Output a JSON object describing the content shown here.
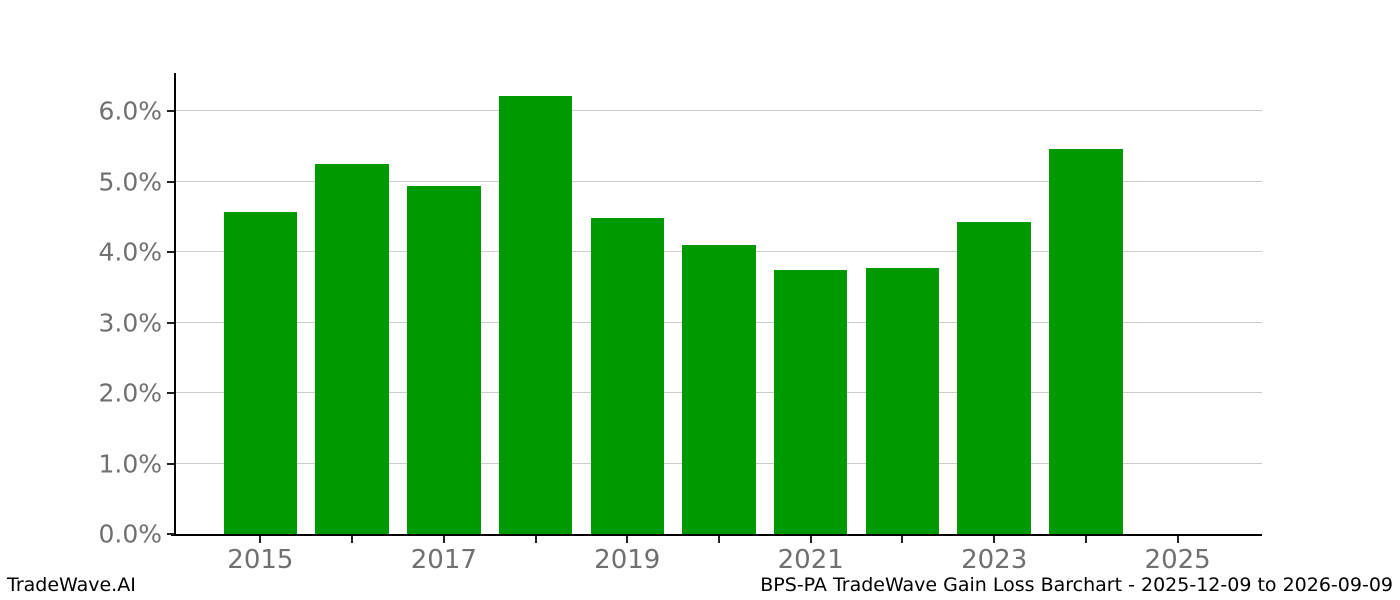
{
  "footer": {
    "brand": "TradeWave.AI",
    "caption": "BPS-PA TradeWave Gain Loss Barchart - 2025-12-09 to 2026-09-09"
  },
  "chart_data": {
    "type": "bar",
    "title": "",
    "xlabel": "",
    "ylabel": "",
    "categories": [
      2015,
      2016,
      2017,
      2018,
      2019,
      2020,
      2021,
      2022,
      2023,
      2024
    ],
    "values": [
      4.57,
      5.25,
      4.94,
      6.22,
      4.48,
      4.1,
      3.74,
      3.78,
      4.43,
      5.46
    ],
    "unit": "%",
    "bar_color": "#009a00",
    "bar_width_years": 0.8,
    "xlim": [
      2014.08,
      2025.92
    ],
    "ylim": [
      0,
      6.54
    ],
    "x_tick_marks": [
      2015,
      2016,
      2017,
      2018,
      2019,
      2020,
      2021,
      2022,
      2023,
      2024,
      2025
    ],
    "x_tick_labels": [
      {
        "year": 2015,
        "label": "2015"
      },
      {
        "year": 2017,
        "label": "2017"
      },
      {
        "year": 2019,
        "label": "2019"
      },
      {
        "year": 2021,
        "label": "2021"
      },
      {
        "year": 2023,
        "label": "2023"
      },
      {
        "year": 2025,
        "label": "2025"
      }
    ],
    "y_ticks": [
      {
        "value": 0,
        "label": "0.0%"
      },
      {
        "value": 1,
        "label": "1.0%"
      },
      {
        "value": 2,
        "label": "2.0%"
      },
      {
        "value": 3,
        "label": "3.0%"
      },
      {
        "value": 4,
        "label": "4.0%"
      },
      {
        "value": 5,
        "label": "5.0%"
      },
      {
        "value": 6,
        "label": "6.0%"
      }
    ],
    "grid": "horizontal",
    "grid_color": "#cccccc",
    "tick_label_color": "#707070",
    "legend": "none"
  }
}
